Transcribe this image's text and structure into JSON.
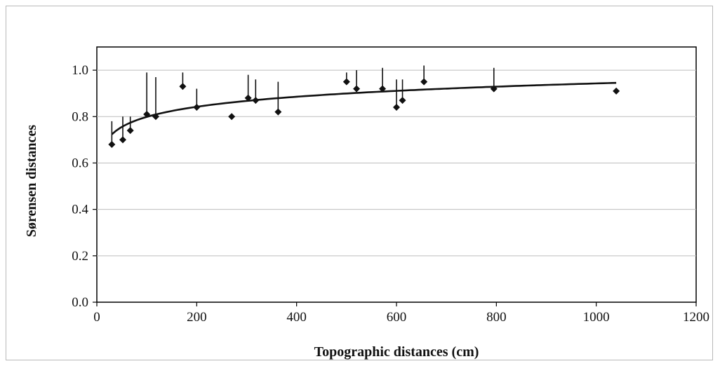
{
  "chart_data": {
    "type": "scatter",
    "title": "",
    "xlabel": "Topographic distances (cm)",
    "ylabel": "Sørensen distances",
    "xlim": [
      0,
      1200
    ],
    "ylim": [
      0,
      1.1
    ],
    "x_ticks": [
      "0",
      "200",
      "400",
      "600",
      "800",
      "1000",
      "1200"
    ],
    "y_ticks": [
      "0.0",
      "0.2",
      "0.4",
      "0.6",
      "0.8",
      "1.0"
    ],
    "grid": "horizontal",
    "legend": "none",
    "series": [
      {
        "points": [
          {
            "x": 30,
            "y": 0.68,
            "upper": 0.78
          },
          {
            "x": 52,
            "y": 0.7,
            "upper": 0.8
          },
          {
            "x": 67,
            "y": 0.74,
            "upper": 0.8
          },
          {
            "x": 100,
            "y": 0.81,
            "upper": 0.99
          },
          {
            "x": 118,
            "y": 0.8,
            "upper": 0.97
          },
          {
            "x": 172,
            "y": 0.93,
            "upper": 0.99
          },
          {
            "x": 200,
            "y": 0.84,
            "upper": 0.92
          },
          {
            "x": 270,
            "y": 0.8,
            "upper": 0.8
          },
          {
            "x": 303,
            "y": 0.88,
            "upper": 0.98
          },
          {
            "x": 318,
            "y": 0.87,
            "upper": 0.96
          },
          {
            "x": 363,
            "y": 0.82,
            "upper": 0.95
          },
          {
            "x": 500,
            "y": 0.95,
            "upper": 0.99
          },
          {
            "x": 520,
            "y": 0.92,
            "upper": 1.0
          },
          {
            "x": 572,
            "y": 0.92,
            "upper": 1.01
          },
          {
            "x": 600,
            "y": 0.84,
            "upper": 0.96
          },
          {
            "x": 612,
            "y": 0.87,
            "upper": 0.96
          },
          {
            "x": 655,
            "y": 0.95,
            "upper": 1.02
          },
          {
            "x": 795,
            "y": 0.92,
            "upper": 1.01
          },
          {
            "x": 1040,
            "y": 0.91,
            "upper": 0.91
          }
        ]
      }
    ],
    "trendline": {
      "type": "logarithmic",
      "x_from": 30,
      "x_to": 1040,
      "a": 0.5105,
      "b": 0.0626
    },
    "colors": {
      "marker": "#111111",
      "trendline": "#111111",
      "grid": "#bdbdbd"
    }
  }
}
